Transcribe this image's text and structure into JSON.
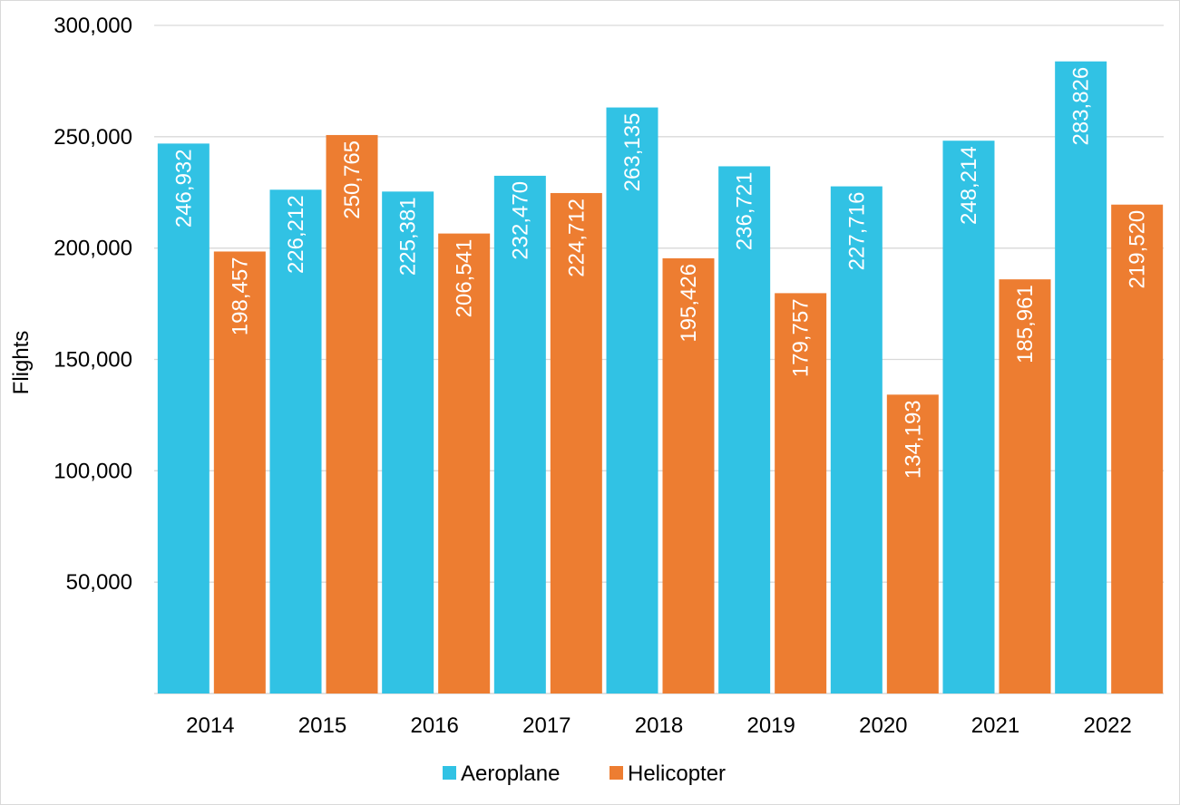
{
  "chart_data": {
    "type": "bar",
    "title": "",
    "xlabel": "",
    "ylabel": "Flights",
    "ylim": [
      0,
      300000
    ],
    "yticks": [
      50000,
      100000,
      150000,
      200000,
      250000,
      300000
    ],
    "ytick_labels": [
      "50,000",
      "100,000",
      "150,000",
      "200,000",
      "250,000",
      "300,000"
    ],
    "categories": [
      "2014",
      "2015",
      "2016",
      "2017",
      "2018",
      "2019",
      "2020",
      "2021",
      "2022"
    ],
    "series": [
      {
        "name": "Aeroplane",
        "color": "#31c2e4",
        "values": [
          246932,
          226212,
          225381,
          232470,
          263135,
          236721,
          227716,
          248214,
          283826
        ],
        "labels": [
          "246,932",
          "226,212",
          "225,381",
          "232,470",
          "263,135",
          "236,721",
          "227,716",
          "248,214",
          "283,826"
        ]
      },
      {
        "name": "Helicopter",
        "color": "#ed7d31",
        "values": [
          198457,
          250765,
          206541,
          224712,
          195426,
          179757,
          134193,
          185961,
          219520
        ],
        "labels": [
          "198,457",
          "250,765",
          "206,541",
          "224,712",
          "195,426",
          "179,757",
          "134,193",
          "185,961",
          "219,520"
        ]
      }
    ],
    "grid": true,
    "legend_position": "bottom"
  }
}
